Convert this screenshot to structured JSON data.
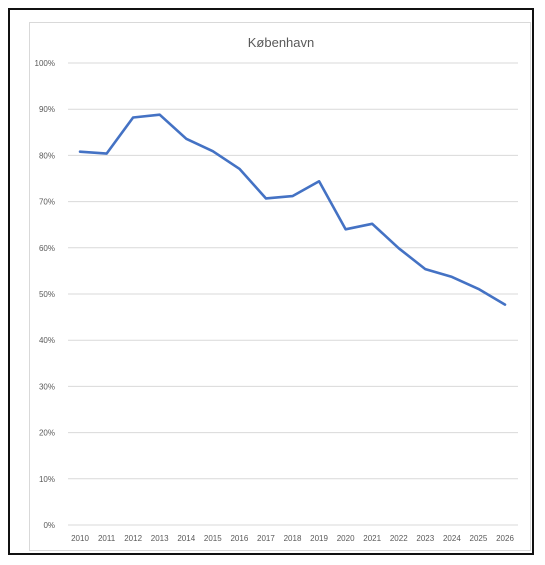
{
  "chart_data": {
    "type": "line",
    "title": "København",
    "xlabel": "",
    "ylabel": "",
    "x": [
      "2010",
      "2011",
      "2012",
      "2013",
      "2014",
      "2015",
      "2016",
      "2017",
      "2018",
      "2019",
      "2020",
      "2021",
      "2022",
      "2023",
      "2024",
      "2025",
      "2026"
    ],
    "series": [
      {
        "values": [
          80.8,
          80.4,
          88.2,
          88.8,
          83.6,
          80.9,
          77.1,
          70.7,
          71.2,
          74.4,
          64.0,
          65.2,
          59.9,
          55.4,
          53.7,
          51.1,
          47.7
        ],
        "color": "#4472c4"
      }
    ],
    "yticks": [
      "0%",
      "10%",
      "20%",
      "30%",
      "40%",
      "50%",
      "60%",
      "70%",
      "80%",
      "90%",
      "100%"
    ],
    "ylim": [
      0,
      100
    ],
    "grid": true,
    "legend": "none"
  }
}
